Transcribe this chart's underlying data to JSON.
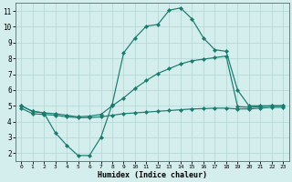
{
  "xlabel": "Humidex (Indice chaleur)",
  "bg_color": "#d4eeee",
  "grid_color": "#b8d8d8",
  "line_color": "#1a7a6e",
  "xlim": [
    -0.5,
    23.5
  ],
  "ylim": [
    1.5,
    11.5
  ],
  "xticks": [
    0,
    1,
    2,
    3,
    4,
    5,
    6,
    7,
    8,
    9,
    10,
    11,
    12,
    13,
    14,
    15,
    16,
    17,
    18,
    19,
    20,
    21,
    22,
    23
  ],
  "yticks": [
    2,
    3,
    4,
    5,
    6,
    7,
    8,
    9,
    10,
    11
  ],
  "curve_a_x": [
    0,
    1,
    2,
    3,
    4,
    5,
    6,
    7,
    8,
    9,
    10,
    11,
    12,
    13,
    14,
    15,
    16,
    17,
    18,
    19,
    20,
    21,
    22,
    23
  ],
  "curve_a_y": [
    5.0,
    4.65,
    4.55,
    3.3,
    2.5,
    1.85,
    1.85,
    3.0,
    5.1,
    8.35,
    9.3,
    10.05,
    10.15,
    11.05,
    11.2,
    10.5,
    9.3,
    8.55,
    8.45,
    6.0,
    5.0,
    5.0,
    5.0,
    5.0
  ],
  "curve_b_x": [
    0,
    1,
    2,
    3,
    4,
    5,
    6,
    7,
    8,
    9,
    10,
    11,
    12,
    13,
    14,
    15,
    16,
    17,
    18,
    19,
    20,
    21,
    22,
    23
  ],
  "curve_b_y": [
    5.0,
    4.65,
    4.55,
    4.5,
    4.4,
    4.3,
    4.35,
    4.45,
    5.0,
    5.5,
    6.1,
    6.6,
    7.05,
    7.35,
    7.65,
    7.85,
    7.95,
    8.05,
    8.15,
    4.95,
    4.9,
    4.95,
    5.0,
    5.0
  ],
  "curve_c_x": [
    0,
    1,
    2,
    3,
    4,
    5,
    6,
    7,
    8,
    9,
    10,
    11,
    12,
    13,
    14,
    15,
    16,
    17,
    18,
    19,
    20,
    21,
    22,
    23
  ],
  "curve_c_y": [
    4.85,
    4.5,
    4.45,
    4.4,
    4.3,
    4.25,
    4.25,
    4.3,
    4.4,
    4.5,
    4.55,
    4.6,
    4.65,
    4.7,
    4.75,
    4.8,
    4.82,
    4.85,
    4.85,
    4.8,
    4.8,
    4.85,
    4.9,
    4.9
  ]
}
